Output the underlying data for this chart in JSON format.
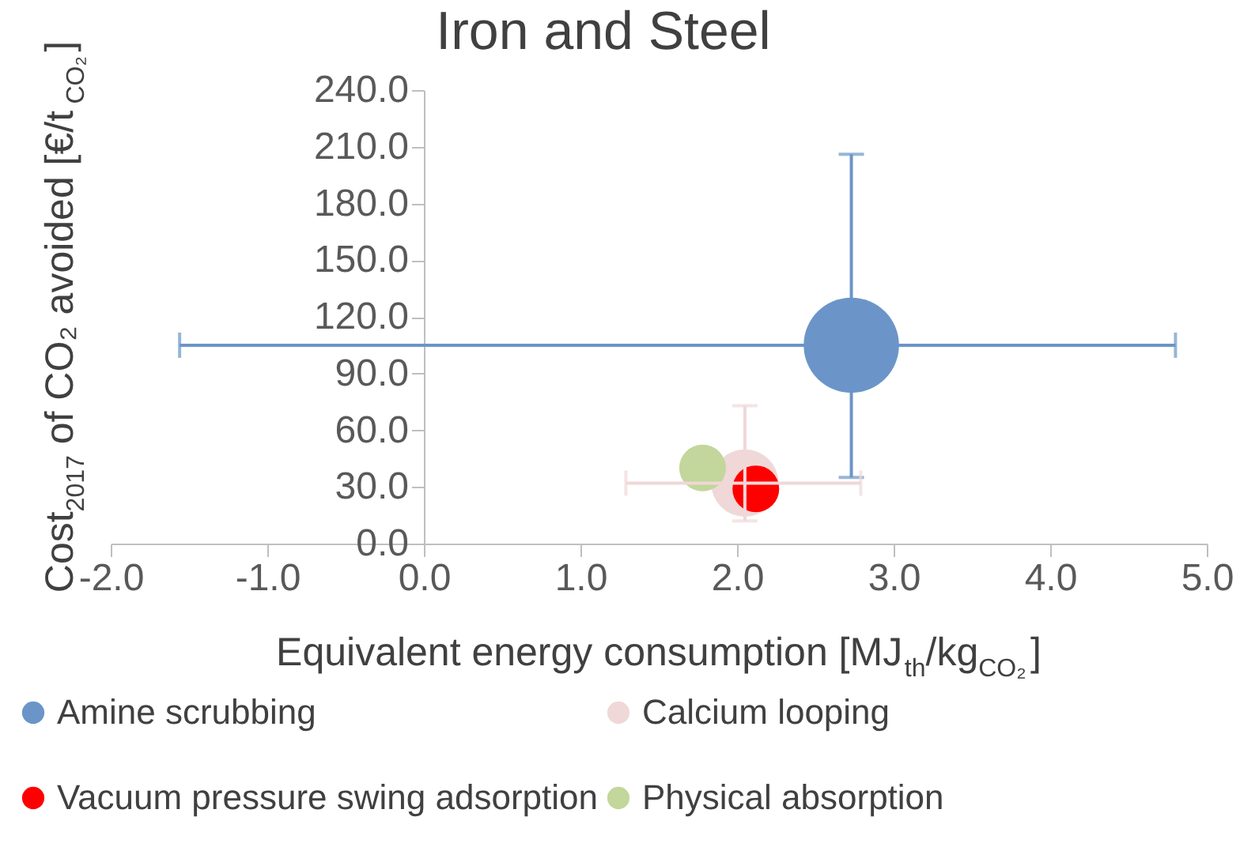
{
  "chart_data": {
    "type": "bubble",
    "title": "Iron and Steel",
    "xlabel": "Equivalent energy consumption [MJ$_{th}$/kg$_{CO₂}$]",
    "ylabel": "Cost$_{2017}$ of CO₂ avoided [€/t$_{CO₂}$]",
    "xlim": [
      -2.0,
      5.0
    ],
    "xticks": [
      {
        "value": -2,
        "label": "-2.0"
      },
      {
        "value": -1,
        "label": "-1.0"
      },
      {
        "value": 0,
        "label": "0.0"
      },
      {
        "value": 1,
        "label": "1.0"
      },
      {
        "value": 2,
        "label": "2.0"
      },
      {
        "value": 3,
        "label": "3.0"
      },
      {
        "value": 4,
        "label": "4.0"
      },
      {
        "value": 5,
        "label": "5.0"
      }
    ],
    "ylim": [
      0,
      240
    ],
    "yticks": [
      {
        "value": 0,
        "label": "0.0"
      },
      {
        "value": 30,
        "label": "30.0"
      },
      {
        "value": 60,
        "label": "60.0"
      },
      {
        "value": 90,
        "label": "90.0"
      },
      {
        "value": 120,
        "label": "120.0"
      },
      {
        "value": 150,
        "label": "150.0"
      },
      {
        "value": 180,
        "label": "180.0"
      },
      {
        "value": 210,
        "label": "210.0"
      },
      {
        "value": 240,
        "label": "240.0"
      }
    ],
    "grid": false,
    "legend": "bottom",
    "series": [
      {
        "name": "Amine scrubbing",
        "color": "#6b95c8",
        "x": [
          2.73
        ],
        "values": [
          105
        ],
        "sizes": [
          1
        ],
        "errors": [
          [
            35,
            206
          ]
        ],
        "xerrors": [
          [
            -1.56,
            4.8
          ]
        ]
      },
      {
        "name": "Calcium looping",
        "color": "#f0d8d8",
        "x": [
          2.05
        ],
        "values": [
          32
        ],
        "sizes": [
          0.5
        ],
        "errors": [
          [
            12,
            73
          ]
        ],
        "xerrors": [
          [
            1.29,
            2.79
          ]
        ]
      },
      {
        "name": "Vacuum pressure swing adsorption",
        "color": "#ff0000",
        "x": [
          2.12
        ],
        "values": [
          29
        ],
        "sizes": [
          0.24
        ]
      },
      {
        "name": "Physical absorption",
        "color": "#c3d69b",
        "x": [
          1.78
        ],
        "values": [
          40
        ],
        "sizes": [
          0.24
        ]
      }
    ]
  }
}
